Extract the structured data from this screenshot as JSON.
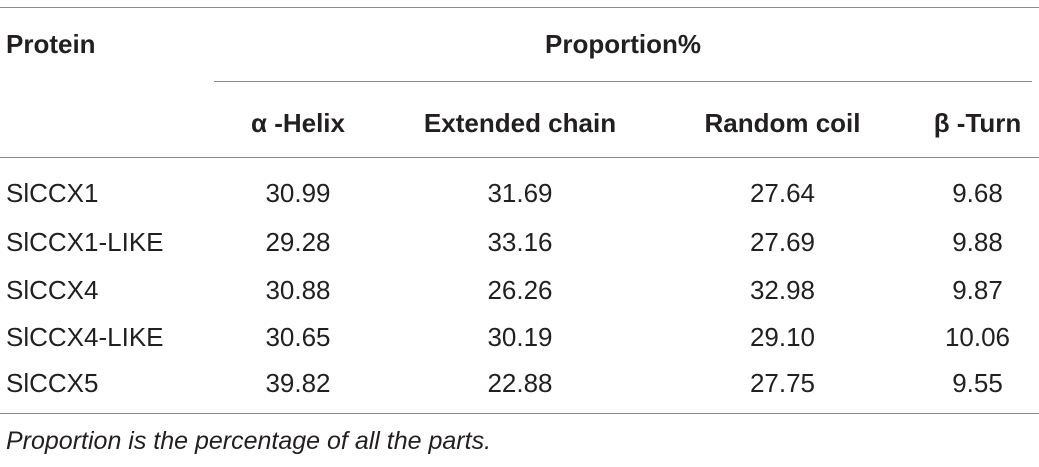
{
  "table": {
    "header": {
      "protein": "Protein",
      "proportion_group": "Proportion%",
      "columns": [
        "α -Helix",
        "Extended chain",
        "Random coil",
        "β -Turn"
      ]
    },
    "rows": [
      {
        "protein": "SlCCX1",
        "values": [
          "30.99",
          "31.69",
          "27.64",
          "9.68"
        ]
      },
      {
        "protein": "SlCCX1-LIKE",
        "values": [
          "29.28",
          "33.16",
          "27.69",
          "9.88"
        ]
      },
      {
        "protein": "SlCCX4",
        "values": [
          "30.88",
          "26.26",
          "32.98",
          "9.87"
        ]
      },
      {
        "protein": "SlCCX4-LIKE",
        "values": [
          "30.65",
          "30.19",
          "29.10",
          "10.06"
        ]
      },
      {
        "protein": "SlCCX5",
        "values": [
          "39.82",
          "22.88",
          "27.75",
          "9.55"
        ]
      }
    ]
  },
  "footnote": "Proportion is the percentage of all the parts."
}
